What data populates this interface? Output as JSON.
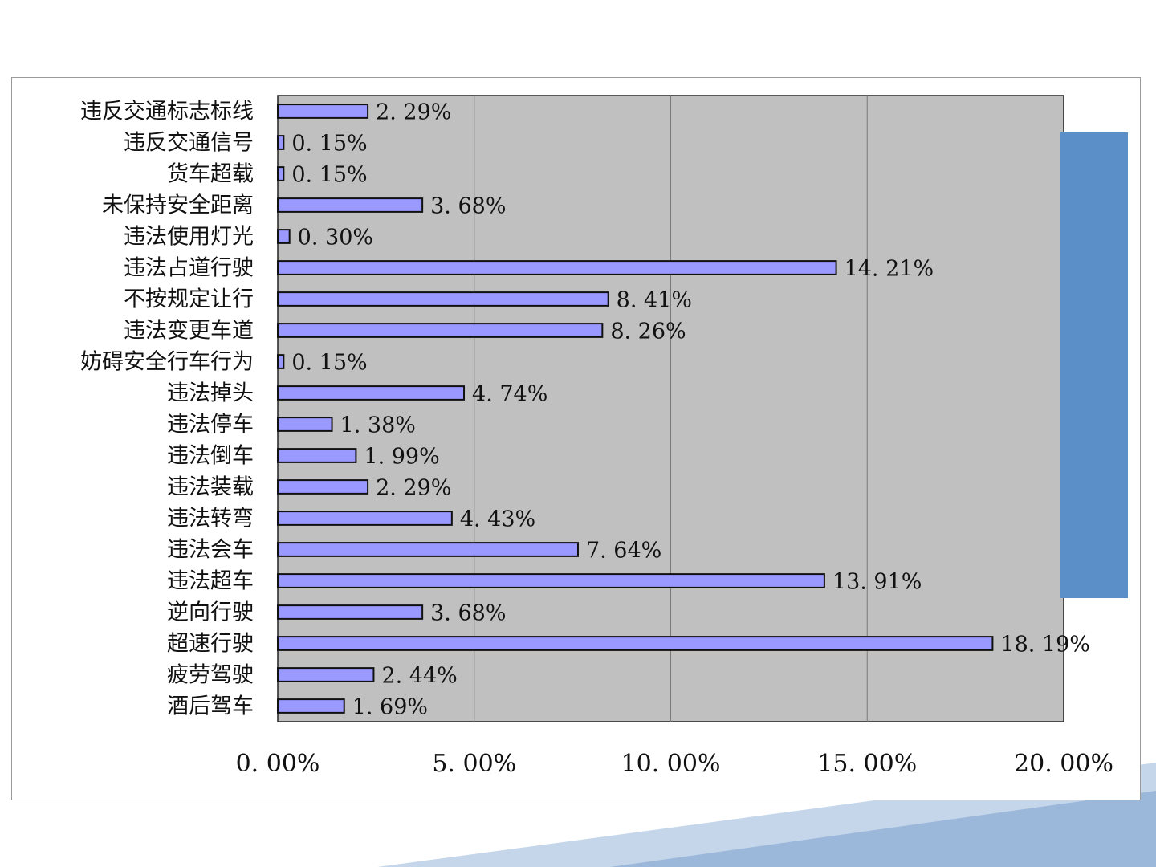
{
  "colors": {
    "plot_bg": "#c0c0c0",
    "bar_fill": "#9999ff",
    "bar_stroke": "#111111",
    "gridline": "#7a7a7a",
    "side_block": "#5b8fc7",
    "deco_light": "#c5d6ea",
    "deco_dark": "#9bb7da"
  },
  "chart_data": {
    "type": "bar",
    "orientation": "horizontal",
    "categories": [
      "违反交通标志标线",
      "违反交通信号",
      "货车超载",
      "未保持安全距离",
      "违法使用灯光",
      "违法占道行驶",
      "不按规定让行",
      "违法变更车道",
      "妨碍安全行车行为",
      "违法掉头",
      "违法停车",
      "违法倒车",
      "违法装载",
      "违法转弯",
      "违法会车",
      "违法超车",
      "逆向行驶",
      "超速行驶",
      "疲劳驾驶",
      "酒后驾车"
    ],
    "values": [
      2.29,
      0.15,
      0.15,
      3.68,
      0.3,
      14.21,
      8.41,
      8.26,
      0.15,
      4.74,
      1.38,
      1.99,
      2.29,
      4.43,
      7.64,
      13.91,
      3.68,
      18.19,
      2.44,
      1.69
    ],
    "value_labels": [
      "2. 29%",
      "0. 15%",
      "0. 15%",
      "3. 68%",
      "0. 30%",
      "14. 21%",
      "8. 41%",
      "8. 26%",
      "0. 15%",
      "4. 74%",
      "1. 38%",
      "1. 99%",
      "2. 29%",
      "4. 43%",
      "7. 64%",
      "13. 91%",
      "3. 68%",
      "18. 19%",
      "2. 44%",
      "1. 69%"
    ],
    "xlim": [
      0,
      20
    ],
    "x_ticks": [
      0,
      5,
      10,
      15,
      20
    ],
    "x_tick_labels": [
      "0. 00%",
      "5. 00%",
      "10. 00%",
      "15. 00%",
      "20. 00%"
    ],
    "grid": "vertical",
    "legend": "none",
    "title": "",
    "xlabel": "",
    "ylabel": ""
  }
}
